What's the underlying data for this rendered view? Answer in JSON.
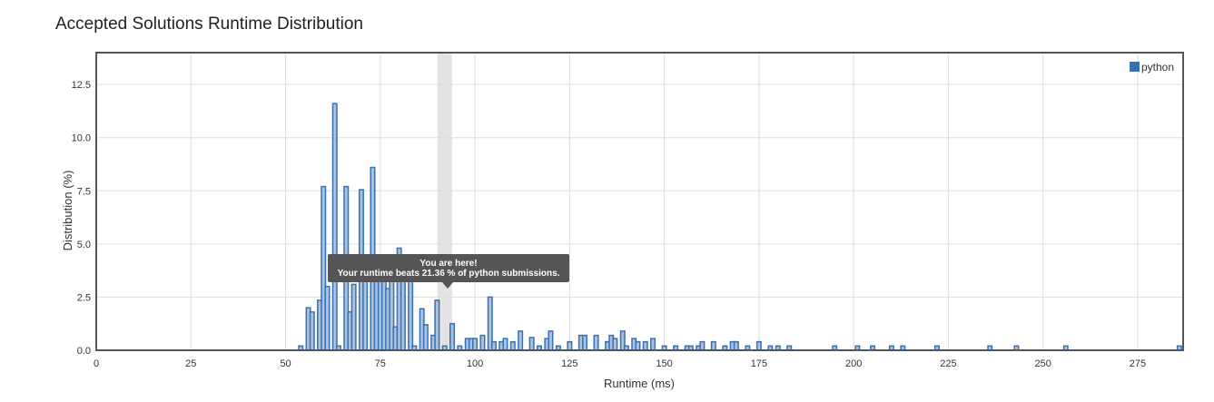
{
  "chart_data": {
    "type": "bar",
    "title": "Accepted Solutions Runtime Distribution",
    "xlabel": "Runtime (ms)",
    "ylabel": "Distribution (%)",
    "xlim": [
      0,
      287
    ],
    "ylim": [
      0,
      14
    ],
    "xticks": [
      "0",
      "25",
      "50",
      "75",
      "100",
      "125",
      "150",
      "175",
      "200",
      "225",
      "250",
      "275"
    ],
    "yticks": [
      "0.0",
      "2.5",
      "5.0",
      "7.5",
      "10.0",
      "12.5"
    ],
    "legend": {
      "position": "top-right",
      "entries": [
        "python"
      ]
    },
    "series": [
      {
        "name": "python",
        "color": "#4a7bb7",
        "x": [
          54,
          56,
          57,
          59,
          60,
          61,
          63,
          64,
          66,
          67,
          68,
          70,
          71,
          73,
          74,
          75,
          76,
          77,
          78,
          79,
          80,
          81,
          83,
          84,
          86,
          87,
          89,
          90,
          92,
          94,
          96,
          98,
          99,
          100,
          102,
          104,
          105,
          107,
          108,
          110,
          112,
          115,
          117,
          119,
          120,
          122,
          125,
          128,
          129,
          132,
          135,
          136,
          137,
          139,
          140,
          142,
          143,
          145,
          147,
          150,
          153,
          156,
          157,
          159,
          160,
          163,
          166,
          168,
          169,
          172,
          175,
          178,
          180,
          183,
          195,
          201,
          205,
          210,
          213,
          222,
          236,
          243,
          256,
          286
        ],
        "values": [
          0.2,
          2.0,
          1.8,
          2.35,
          7.7,
          3.0,
          11.6,
          0.2,
          7.7,
          1.8,
          3.1,
          7.55,
          3.7,
          8.6,
          3.5,
          3.5,
          4.0,
          2.9,
          3.6,
          1.1,
          4.8,
          4.0,
          3.5,
          0.2,
          1.95,
          1.2,
          0.7,
          2.35,
          0.2,
          1.25,
          0.2,
          0.55,
          0.55,
          0.55,
          0.7,
          2.5,
          0.4,
          0.4,
          0.55,
          0.4,
          0.9,
          0.6,
          0.2,
          0.55,
          0.9,
          0.2,
          0.4,
          0.7,
          0.7,
          0.7,
          0.4,
          0.7,
          0.55,
          0.9,
          0.2,
          0.55,
          0.4,
          0.4,
          0.55,
          0.2,
          0.2,
          0.2,
          0.2,
          0.2,
          0.4,
          0.4,
          0.2,
          0.4,
          0.4,
          0.2,
          0.4,
          0.2,
          0.2,
          0.2,
          0.2,
          0.2,
          0.2,
          0.2,
          0.2,
          0.2,
          0.2,
          0.2,
          0.2,
          0.2
        ]
      }
    ],
    "highlight": {
      "x": 92
    },
    "annotation": {
      "line1": "You are here!",
      "line2": "Your runtime beats 21.36 % of python submissions."
    }
  },
  "colors": {
    "bar_fill": "#a6c3e4",
    "bar_stroke": "#3b6fae",
    "legend_swatch": "#3b6fae",
    "grid": "#dddddd",
    "frame": "#555555",
    "highlight": "#e3e3e3",
    "tooltip_bg": "#555555"
  }
}
